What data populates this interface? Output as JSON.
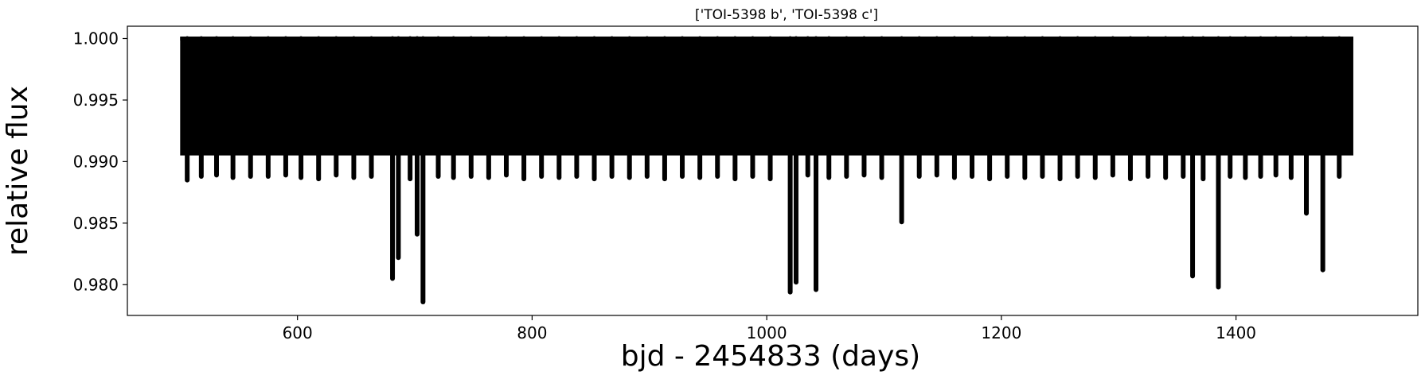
{
  "chart_data": {
    "type": "line",
    "title": "['TOI-5398 b', 'TOI-5398 c']",
    "xlabel": "bjd - 2454833 (days)",
    "ylabel": "relative flux",
    "xlim": [
      455,
      1555
    ],
    "ylim": [
      0.9775,
      1.001
    ],
    "xticks": [
      600,
      800,
      1000,
      1200,
      1400
    ],
    "yticks": [
      0.98,
      0.985,
      0.99,
      0.995,
      1.0
    ],
    "ytick_labels": [
      "0.980",
      "0.985",
      "0.990",
      "0.995",
      "1.000"
    ],
    "x_range": [
      500,
      1500
    ],
    "baseline": 1.0,
    "line_color": "#000000",
    "grid": false,
    "series": [
      {
        "transits": [
          {
            "x": 506,
            "depth": 0.9885
          },
          {
            "x": 518,
            "depth": 0.9888
          },
          {
            "x": 531,
            "depth": 0.9889
          },
          {
            "x": 545,
            "depth": 0.9887
          },
          {
            "x": 560,
            "depth": 0.9888
          },
          {
            "x": 575,
            "depth": 0.9888
          },
          {
            "x": 590,
            "depth": 0.9889
          },
          {
            "x": 603,
            "depth": 0.9887
          },
          {
            "x": 618,
            "depth": 0.9886
          },
          {
            "x": 633,
            "depth": 0.9889
          },
          {
            "x": 648,
            "depth": 0.9887
          },
          {
            "x": 663,
            "depth": 0.9888
          },
          {
            "x": 681,
            "depth": 0.9805
          },
          {
            "x": 686,
            "depth": 0.9822
          },
          {
            "x": 696,
            "depth": 0.9886
          },
          {
            "x": 702,
            "depth": 0.9841
          },
          {
            "x": 707,
            "depth": 0.9786
          },
          {
            "x": 720,
            "depth": 0.9888
          },
          {
            "x": 733,
            "depth": 0.9887
          },
          {
            "x": 748,
            "depth": 0.9888
          },
          {
            "x": 763,
            "depth": 0.9887
          },
          {
            "x": 778,
            "depth": 0.9889
          },
          {
            "x": 793,
            "depth": 0.9886
          },
          {
            "x": 808,
            "depth": 0.9888
          },
          {
            "x": 823,
            "depth": 0.9887
          },
          {
            "x": 838,
            "depth": 0.9888
          },
          {
            "x": 853,
            "depth": 0.9886
          },
          {
            "x": 868,
            "depth": 0.9888
          },
          {
            "x": 883,
            "depth": 0.9887
          },
          {
            "x": 898,
            "depth": 0.9888
          },
          {
            "x": 913,
            "depth": 0.9886
          },
          {
            "x": 928,
            "depth": 0.9888
          },
          {
            "x": 943,
            "depth": 0.9887
          },
          {
            "x": 958,
            "depth": 0.9888
          },
          {
            "x": 973,
            "depth": 0.9886
          },
          {
            "x": 988,
            "depth": 0.9888
          },
          {
            "x": 1003,
            "depth": 0.9886
          },
          {
            "x": 1020,
            "depth": 0.9794
          },
          {
            "x": 1025,
            "depth": 0.9802
          },
          {
            "x": 1035,
            "depth": 0.9889
          },
          {
            "x": 1042,
            "depth": 0.9796
          },
          {
            "x": 1053,
            "depth": 0.9887
          },
          {
            "x": 1068,
            "depth": 0.9888
          },
          {
            "x": 1083,
            "depth": 0.9889
          },
          {
            "x": 1098,
            "depth": 0.9887
          },
          {
            "x": 1115,
            "depth": 0.9851
          },
          {
            "x": 1130,
            "depth": 0.9888
          },
          {
            "x": 1145,
            "depth": 0.9889
          },
          {
            "x": 1160,
            "depth": 0.9887
          },
          {
            "x": 1175,
            "depth": 0.9888
          },
          {
            "x": 1190,
            "depth": 0.9886
          },
          {
            "x": 1205,
            "depth": 0.9888
          },
          {
            "x": 1220,
            "depth": 0.9887
          },
          {
            "x": 1235,
            "depth": 0.9888
          },
          {
            "x": 1250,
            "depth": 0.9886
          },
          {
            "x": 1265,
            "depth": 0.9888
          },
          {
            "x": 1280,
            "depth": 0.9887
          },
          {
            "x": 1295,
            "depth": 0.9889
          },
          {
            "x": 1310,
            "depth": 0.9886
          },
          {
            "x": 1325,
            "depth": 0.9888
          },
          {
            "x": 1340,
            "depth": 0.9887
          },
          {
            "x": 1355,
            "depth": 0.9888
          },
          {
            "x": 1363,
            "depth": 0.9807
          },
          {
            "x": 1372,
            "depth": 0.9886
          },
          {
            "x": 1385,
            "depth": 0.9798
          },
          {
            "x": 1395,
            "depth": 0.9888
          },
          {
            "x": 1408,
            "depth": 0.9887
          },
          {
            "x": 1421,
            "depth": 0.9888
          },
          {
            "x": 1434,
            "depth": 0.9889
          },
          {
            "x": 1447,
            "depth": 0.9887
          },
          {
            "x": 1460,
            "depth": 0.9858
          },
          {
            "x": 1474,
            "depth": 0.9812
          },
          {
            "x": 1488,
            "depth": 0.9888
          }
        ]
      }
    ]
  }
}
